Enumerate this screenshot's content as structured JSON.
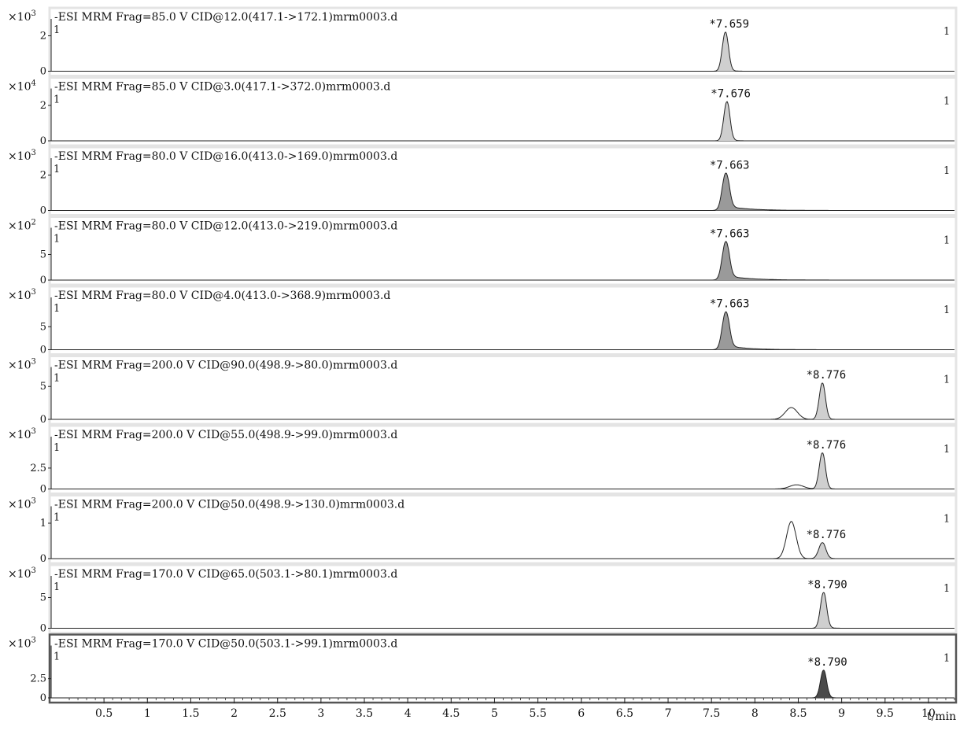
{
  "chart_data": {
    "type": "line",
    "xlabel": "t/min",
    "xlabel_italic": "t",
    "xlabel_unit": "/min",
    "xlim": [
      0,
      10.3
    ],
    "x_ticks": [
      "0.5",
      "1",
      "1.5",
      "2",
      "2.5",
      "3",
      "3.5",
      "4",
      "4.5",
      "5",
      "5.5",
      "6",
      "6.5",
      "7",
      "7.5",
      "8",
      "8.5",
      "9",
      "9.5",
      "10"
    ],
    "x_tick_values": [
      0.5,
      1,
      1.5,
      2,
      2.5,
      3,
      3.5,
      4,
      4.5,
      5,
      5.5,
      6,
      6.5,
      7,
      7.5,
      8,
      8.5,
      9,
      9.5,
      10
    ],
    "panels": [
      {
        "title": "-ESI MRM Frag=85.0 V CID@12.0(417.1->172.1)mrm0003.d",
        "multiplier_base": "×10",
        "multiplier_exp": "3",
        "y_ticks": [
          "2",
          "0"
        ],
        "y_tick_values": [
          2,
          0
        ],
        "ylim": [
          0,
          2.6
        ],
        "peak_label": "*7.659",
        "peak_rt": 7.659,
        "peak_height": 2.2,
        "corner_left": "1",
        "corner_right": "1",
        "series": [
          {
            "type": "peak",
            "c": 7.659,
            "h": 2.2,
            "s": 0.035,
            "tail": 0.04
          }
        ],
        "fill": "light"
      },
      {
        "title": "-ESI MRM Frag=85.0 V CID@3.0(417.1->372.0)mrm0003.d",
        "multiplier_base": "×10",
        "multiplier_exp": "4",
        "y_ticks": [
          "2",
          "0"
        ],
        "y_tick_values": [
          2,
          0
        ],
        "ylim": [
          0,
          2.6
        ],
        "peak_label": "*7.676",
        "peak_rt": 7.676,
        "peak_height": 2.2,
        "corner_left": "1",
        "corner_right": "1",
        "series": [
          {
            "type": "peak",
            "c": 7.676,
            "h": 2.2,
            "s": 0.035,
            "tail": 0.04
          }
        ],
        "fill": "light"
      },
      {
        "title": "-ESI MRM Frag=80.0 V CID@16.0(413.0->169.0)mrm0003.d",
        "multiplier_base": "×10",
        "multiplier_exp": "3",
        "y_ticks": [
          "2",
          "0"
        ],
        "y_tick_values": [
          2,
          0
        ],
        "ylim": [
          0,
          2.6
        ],
        "peak_label": "*7.663",
        "peak_rt": 7.663,
        "peak_height": 2.1,
        "corner_left": "1",
        "corner_right": "1",
        "series": [
          {
            "type": "peak",
            "c": 7.663,
            "h": 2.1,
            "s": 0.04,
            "tail": 0.25
          }
        ],
        "fill": "dark"
      },
      {
        "title": "-ESI MRM Frag=80.0 V CID@12.0(413.0->219.0)mrm0003.d",
        "multiplier_base": "×10",
        "multiplier_exp": "2",
        "y_ticks": [
          "5",
          "0"
        ],
        "y_tick_values": [
          5,
          0
        ],
        "ylim": [
          0,
          9
        ],
        "peak_label": "*7.663",
        "peak_rt": 7.663,
        "peak_height": 7.5,
        "corner_left": "1",
        "corner_right": "1",
        "series": [
          {
            "type": "peak",
            "c": 7.663,
            "h": 7.5,
            "s": 0.04,
            "tail": 0.25
          }
        ],
        "fill": "dark"
      },
      {
        "title": "-ESI MRM Frag=80.0 V CID@4.0(413.0->368.9)mrm0003.d",
        "multiplier_base": "×10",
        "multiplier_exp": "3",
        "y_ticks": [
          "5",
          "0"
        ],
        "y_tick_values": [
          5,
          0
        ],
        "ylim": [
          0,
          10
        ],
        "peak_label": "*7.663",
        "peak_rt": 7.663,
        "peak_height": 8.2,
        "corner_left": "1",
        "corner_right": "1",
        "series": [
          {
            "type": "peak",
            "c": 7.663,
            "h": 8.2,
            "s": 0.04,
            "tail": 0.22
          }
        ],
        "fill": "dark"
      },
      {
        "title": "-ESI MRM Frag=200.0 V CID@90.0(498.9->80.0)mrm0003.d",
        "multiplier_base": "×10",
        "multiplier_exp": "3",
        "y_ticks": [
          "5",
          "0"
        ],
        "y_tick_values": [
          5,
          0
        ],
        "ylim": [
          0,
          7
        ],
        "peak_label": "*8.776",
        "peak_rt": 8.776,
        "peak_height": 5.5,
        "corner_left": "1",
        "corner_right": "1",
        "series": [
          {
            "type": "peak",
            "c": 8.776,
            "h": 5.5,
            "s": 0.035,
            "tail": 0.03
          },
          {
            "type": "hump",
            "c": 8.42,
            "h": 1.8,
            "s": 0.07
          }
        ],
        "fill": "light"
      },
      {
        "title": "-ESI MRM Frag=200.0 V CID@55.0(498.9->99.0)mrm0003.d",
        "multiplier_base": "×10",
        "multiplier_exp": "3",
        "y_ticks": [
          "2.5",
          "0"
        ],
        "y_tick_values": [
          2.5,
          0
        ],
        "ylim": [
          0,
          5.5
        ],
        "peak_label": "*8.776",
        "peak_rt": 8.776,
        "peak_height": 4.3,
        "corner_left": "1",
        "corner_right": "1",
        "series": [
          {
            "type": "peak",
            "c": 8.776,
            "h": 4.3,
            "s": 0.035,
            "tail": 0.03
          },
          {
            "type": "hump",
            "c": 8.48,
            "h": 0.5,
            "s": 0.08
          }
        ],
        "fill": "light"
      },
      {
        "title": "-ESI MRM Frag=200.0 V CID@50.0(498.9->130.0)mrm0003.d",
        "multiplier_base": "×10",
        "multiplier_exp": "3",
        "y_ticks": [
          "1",
          "0"
        ],
        "y_tick_values": [
          1,
          0
        ],
        "ylim": [
          0,
          1.3
        ],
        "peak_label": "*8.776",
        "peak_rt": 8.776,
        "peak_height": 0.45,
        "corner_left": "1",
        "corner_right": "1",
        "series": [
          {
            "type": "peak",
            "c": 8.776,
            "h": 0.45,
            "s": 0.04,
            "tail": 0.03
          },
          {
            "type": "hump",
            "c": 8.42,
            "h": 1.05,
            "s": 0.055
          }
        ],
        "fill": "light"
      },
      {
        "title": "-ESI MRM Frag=170.0 V CID@65.0(503.1->80.1)mrm0003.d",
        "multiplier_base": "×10",
        "multiplier_exp": "3",
        "y_ticks": [
          "5",
          "0"
        ],
        "y_tick_values": [
          5,
          0
        ],
        "ylim": [
          0,
          7.5
        ],
        "peak_label": "*8.790",
        "peak_rt": 8.79,
        "peak_height": 5.8,
        "corner_left": "1",
        "corner_right": "1",
        "series": [
          {
            "type": "peak",
            "c": 8.79,
            "h": 5.8,
            "s": 0.035,
            "tail": 0.04
          }
        ],
        "fill": "light"
      },
      {
        "title": "-ESI MRM Frag=170.0 V CID@50.0(503.1->99.1)mrm0003.d",
        "multiplier_base": "×10",
        "multiplier_exp": "3",
        "y_ticks": [
          "2.5",
          "0"
        ],
        "y_tick_values": [
          2.5,
          0
        ],
        "ylim": [
          0,
          6
        ],
        "peak_label": "*8.790",
        "peak_rt": 8.79,
        "peak_height": 3.6,
        "corner_left": "1",
        "corner_right": "1",
        "series": [
          {
            "type": "peak",
            "c": 8.79,
            "h": 3.6,
            "s": 0.035,
            "tail": 0.03
          }
        ],
        "fill": "black",
        "selected": true
      }
    ]
  },
  "colors": {
    "line": "#222222",
    "fill_light": "#cfcfcf",
    "fill_dark": "#9a9a9a",
    "fill_black": "#4a4a4a",
    "panel_border": "#e4e4e4",
    "selected_border": "#555555"
  }
}
